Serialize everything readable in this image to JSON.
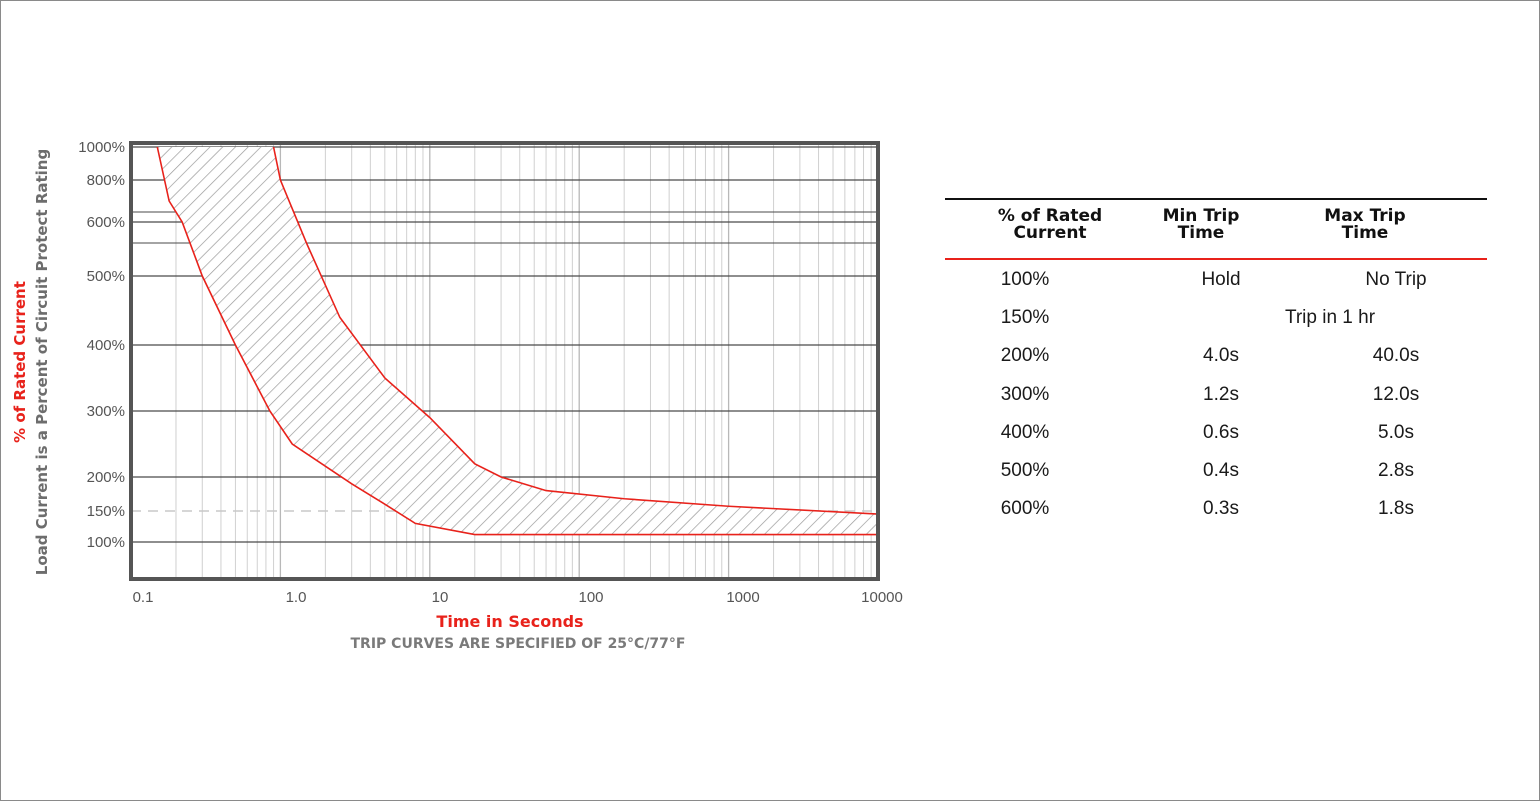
{
  "chart_data": {
    "type": "area",
    "x_scale": "log",
    "y_scale": "custom",
    "xlim": [
      0.1,
      10000
    ],
    "x_ticks": [
      "0.1",
      "1.0",
      "10",
      "100",
      "1000",
      "10000"
    ],
    "y_ticks": [
      "100%",
      "150%",
      "200%",
      "300%",
      "400%",
      "500%",
      "600%",
      "800%",
      "1000%"
    ],
    "ylabel_line1": "% of Rated Current",
    "ylabel_line2": "Load Current is a Percent of Circuit Protect Rating",
    "xlabel": "Time in Seconds",
    "note": "TRIP CURVES ARE SPECIFIED OF 25°C/77°F",
    "grid": true,
    "series": [
      {
        "role": "min-trip",
        "points": [
          [
            0.15,
            1000
          ],
          [
            0.18,
            700
          ],
          [
            0.22,
            600
          ],
          [
            0.3,
            500
          ],
          [
            0.5,
            400
          ],
          [
            0.85,
            300
          ],
          [
            1.2,
            250
          ],
          [
            3,
            190
          ],
          [
            5,
            160
          ],
          [
            8,
            130
          ],
          [
            20,
            112
          ],
          [
            10000,
            112
          ]
        ]
      },
      {
        "role": "max-trip",
        "points": [
          [
            0.9,
            1000
          ],
          [
            1.0,
            800
          ],
          [
            1.5,
            560
          ],
          [
            2.5,
            440
          ],
          [
            5,
            350
          ],
          [
            10,
            290
          ],
          [
            20,
            220
          ],
          [
            30,
            200
          ],
          [
            60,
            180
          ],
          [
            200,
            168
          ],
          [
            1000,
            157
          ],
          [
            10000,
            145
          ]
        ]
      }
    ],
    "reference_line": {
      "y": 150
    }
  },
  "colors": {
    "curve": "#e8221b",
    "red_text": "#e8221b",
    "grey_text": "#6d6d6d",
    "frame": "#555555"
  },
  "table": {
    "headers": [
      [
        "% of Rated",
        "Current"
      ],
      [
        "Min Trip",
        "Time"
      ],
      [
        "Max Trip",
        "Time"
      ]
    ],
    "rows": [
      {
        "current": "100%",
        "min": "Hold",
        "max": "No Trip"
      },
      {
        "current": "150%",
        "span": "Trip in 1 hr"
      },
      {
        "current": "200%",
        "min": "4.0s",
        "max": "40.0s"
      },
      {
        "current": "300%",
        "min": "1.2s",
        "max": "12.0s"
      },
      {
        "current": "400%",
        "min": "0.6s",
        "max": "5.0s"
      },
      {
        "current": "500%",
        "min": "0.4s",
        "max": "2.8s"
      },
      {
        "current": "600%",
        "min": "0.3s",
        "max": "1.8s"
      }
    ]
  }
}
